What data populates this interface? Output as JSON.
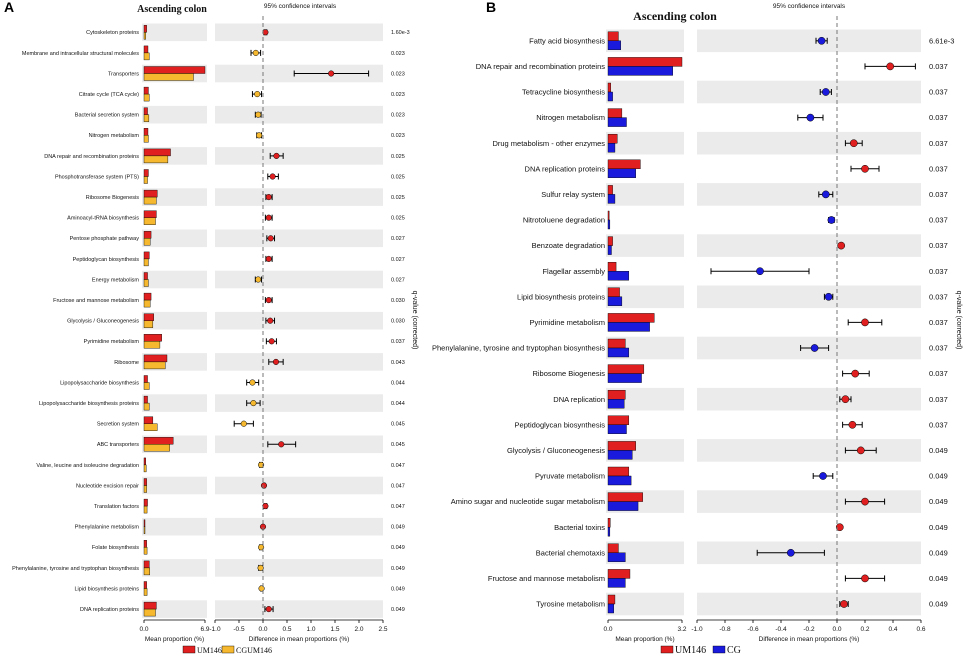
{
  "chart_data": [
    {
      "type": "bar",
      "panel_label": "A",
      "title": "Ascending colon",
      "ci_title": "95% confidence intervals",
      "xlabel_left": "Mean proportion (%)",
      "xlabel_right": "Difference in mean proportions (%)",
      "ylabel_right": "q-value (corrected)",
      "left_xlim": [
        0,
        6.9
      ],
      "left_ticks": [
        "0.0",
        "6.9"
      ],
      "right_xlim": [
        -1.0,
        2.5
      ],
      "right_ticks": [
        "-1.0",
        "-0.5",
        "0.0",
        "0.5",
        "1.0",
        "1.5",
        "2.0",
        "2.5"
      ],
      "legend": [
        {
          "name": "UM146",
          "color": "#e02020"
        },
        {
          "name": "CGUM146",
          "color": "#f5b82e"
        }
      ],
      "series_colors": {
        "a": "#e02020",
        "b": "#f5b82e",
        "point_pos": "#e02020",
        "point_neg": "#f5b82e"
      },
      "categories": [
        "Cytoskeleton proteins",
        "Membrane and intracellular structural molecules",
        "Transporters",
        "Citrate cycle (TCA cycle)",
        "Bacterial secretion system",
        "Nitrogen metabolism",
        "DNA repair and recombination proteins",
        "Phosphotransferase system (PTS)",
        "Ribosome Biogenesis",
        "Aminoacyl-tRNA biosynthesis",
        "Pentose phosphate pathway",
        "Peptidoglycan biosynthesis",
        "Energy metabolism",
        "Fructose and mannose metabolism",
        "Glycolysis / Gluconeogenesis",
        "Pyrimidine metabolism",
        "Ribosome",
        "Lipopolysaccharide biosynthesis",
        "Lipopolysaccharide biosynthesis proteins",
        "Secretion system",
        "ABC transporters",
        "Valine, leucine and isoleucine degradation",
        "Nucleotide excision repair",
        "Translation factors",
        "Phenylalanine metabolism",
        "Folate biosynthesis",
        "Phenylalanine, tyrosine and tryptophan biosynthesis",
        "Lipid biosynthesis proteins",
        "DNA replication proteins"
      ],
      "series": [
        {
          "name": "UM146",
          "values": [
            0.3,
            0.45,
            6.9,
            0.5,
            0.4,
            0.45,
            3.0,
            0.5,
            1.5,
            1.4,
            0.8,
            0.6,
            0.4,
            0.8,
            1.1,
            2.0,
            2.6,
            0.4,
            0.4,
            1.0,
            3.3,
            0.2,
            0.3,
            0.4,
            0.1,
            0.3,
            0.6,
            0.3,
            1.4
          ]
        },
        {
          "name": "CGUM146",
          "values": [
            0.2,
            0.6,
            5.6,
            0.6,
            0.55,
            0.5,
            2.7,
            0.4,
            1.4,
            1.3,
            0.7,
            0.5,
            0.5,
            0.7,
            1.0,
            1.8,
            2.4,
            0.6,
            0.6,
            1.5,
            2.9,
            0.25,
            0.3,
            0.35,
            0.1,
            0.35,
            0.65,
            0.35,
            1.3
          ]
        }
      ],
      "diff": [
        0.05,
        -0.15,
        1.42,
        -0.12,
        -0.1,
        -0.08,
        0.28,
        0.2,
        0.12,
        0.12,
        0.16,
        0.12,
        -0.1,
        0.12,
        0.15,
        0.18,
        0.27,
        -0.22,
        -0.2,
        -0.4,
        0.38,
        -0.04,
        0.02,
        0.05,
        0.0,
        -0.04,
        -0.05,
        -0.03,
        0.12
      ],
      "ci": [
        [
          0.02,
          0.08
        ],
        [
          -0.25,
          -0.05
        ],
        [
          0.65,
          2.2
        ],
        [
          -0.22,
          -0.03
        ],
        [
          -0.16,
          -0.04
        ],
        [
          -0.13,
          -0.03
        ],
        [
          0.15,
          0.42
        ],
        [
          0.1,
          0.32
        ],
        [
          0.06,
          0.19
        ],
        [
          0.05,
          0.19
        ],
        [
          0.08,
          0.24
        ],
        [
          0.06,
          0.19
        ],
        [
          -0.16,
          -0.03
        ],
        [
          0.05,
          0.19
        ],
        [
          0.06,
          0.24
        ],
        [
          0.07,
          0.28
        ],
        [
          0.12,
          0.42
        ],
        [
          -0.34,
          -0.09
        ],
        [
          -0.34,
          -0.06
        ],
        [
          -0.6,
          -0.2
        ],
        [
          0.1,
          0.68
        ],
        [
          -0.07,
          -0.01
        ],
        [
          0.005,
          0.04
        ],
        [
          0.02,
          0.08
        ],
        [
          -0.005,
          0.005
        ],
        [
          -0.07,
          -0.01
        ],
        [
          -0.09,
          -0.01
        ],
        [
          -0.05,
          -0.01
        ],
        [
          0.04,
          0.21
        ]
      ],
      "qvalues": [
        "1.60e-3",
        "0.023",
        "0.023",
        "0.023",
        "0.023",
        "0.023",
        "0.025",
        "0.025",
        "0.025",
        "0.025",
        "0.027",
        "0.027",
        "0.027",
        "0.030",
        "0.030",
        "0.037",
        "0.043",
        "0.044",
        "0.044",
        "0.045",
        "0.045",
        "0.047",
        "0.047",
        "0.047",
        "0.049",
        "0.049",
        "0.049",
        "0.049",
        "0.049"
      ]
    },
    {
      "type": "bar",
      "panel_label": "B",
      "title": "Ascending colon",
      "ci_title": "95% confidence intervals",
      "xlabel_left": "Mean proportion (%)",
      "xlabel_right": "Difference in mean proportions (%)",
      "ylabel_right": "q-value (corrected)",
      "left_xlim": [
        0,
        3.2
      ],
      "left_ticks": [
        "0.0",
        "3.2"
      ],
      "right_xlim": [
        -1.0,
        0.6
      ],
      "right_ticks": [
        "-1.0",
        "-0.8",
        "-0.6",
        "-0.4",
        "-0.2",
        "0.0",
        "0.2",
        "0.4",
        "0.6"
      ],
      "legend": [
        {
          "name": "UM146",
          "color": "#e02020"
        },
        {
          "name": "CG",
          "color": "#1a1adc"
        }
      ],
      "series_colors": {
        "a": "#e02020",
        "b": "#1a1adc",
        "point_pos": "#e02020",
        "point_neg": "#1a1adc"
      },
      "categories": [
        "Fatty acid biosynthesis",
        "DNA repair and recombination proteins",
        "Tetracycline biosynthesis",
        "Nitrogen metabolism",
        "Drug metabolism - other enzymes",
        "DNA replication proteins",
        "Sulfur relay system",
        "Nitrotoluene degradation",
        "Benzoate degradation",
        "Flagellar assembly",
        "Lipid biosynthesis proteins",
        "Pyrimidine metabolism",
        "Phenylalanine, tyrosine and tryptophan biosynthesis",
        "Ribosome Biogenesis",
        "DNA replication",
        "Peptidoglycan biosynthesis",
        "Glycolysis / Gluconeogenesis",
        "Pyruvate metabolism",
        "Amino sugar and nucleotide sugar metabolism",
        "Bacterial toxins",
        "Bacterial chemotaxis",
        "Fructose and mannose metabolism",
        "Tyrosine metabolism"
      ],
      "series": [
        {
          "name": "UM146",
          "values": [
            0.45,
            3.2,
            0.12,
            0.6,
            0.4,
            1.4,
            0.2,
            0.05,
            0.2,
            0.35,
            0.5,
            2.0,
            0.75,
            1.55,
            0.75,
            0.9,
            1.2,
            0.9,
            1.5,
            0.1,
            0.45,
            0.95,
            0.3
          ]
        },
        {
          "name": "CG",
          "values": [
            0.55,
            2.8,
            0.2,
            0.8,
            0.3,
            1.2,
            0.3,
            0.08,
            0.15,
            0.9,
            0.6,
            1.8,
            0.9,
            1.45,
            0.7,
            0.8,
            1.05,
            1.0,
            1.3,
            0.08,
            0.75,
            0.75,
            0.25
          ]
        }
      ],
      "diff": [
        -0.11,
        0.38,
        -0.08,
        -0.19,
        0.12,
        0.2,
        -0.08,
        -0.04,
        0.03,
        -0.55,
        -0.06,
        0.2,
        -0.16,
        0.13,
        0.06,
        0.11,
        0.17,
        -0.1,
        0.2,
        0.02,
        -0.33,
        0.2,
        0.05
      ],
      "ci": [
        [
          -0.15,
          -0.07
        ],
        [
          0.2,
          0.56
        ],
        [
          -0.12,
          -0.04
        ],
        [
          -0.28,
          -0.1
        ],
        [
          0.06,
          0.18
        ],
        [
          0.1,
          0.3
        ],
        [
          -0.13,
          -0.03
        ],
        [
          -0.06,
          -0.02
        ],
        [
          0.02,
          0.04
        ],
        [
          -0.9,
          -0.2
        ],
        [
          -0.09,
          -0.03
        ],
        [
          0.08,
          0.32
        ],
        [
          -0.26,
          -0.06
        ],
        [
          0.04,
          0.23
        ],
        [
          0.02,
          0.1
        ],
        [
          0.04,
          0.18
        ],
        [
          0.06,
          0.28
        ],
        [
          -0.17,
          -0.03
        ],
        [
          0.06,
          0.34
        ],
        [
          0.01,
          0.03
        ],
        [
          -0.57,
          -0.09
        ],
        [
          0.06,
          0.34
        ],
        [
          0.02,
          0.08
        ]
      ],
      "qvalues": [
        "6.61e-3",
        "0.037",
        "0.037",
        "0.037",
        "0.037",
        "0.037",
        "0.037",
        "0.037",
        "0.037",
        "0.037",
        "0.037",
        "0.037",
        "0.037",
        "0.037",
        "0.037",
        "0.037",
        "0.049",
        "0.049",
        "0.049",
        "0.049",
        "0.049",
        "0.049",
        "0.049"
      ]
    }
  ]
}
